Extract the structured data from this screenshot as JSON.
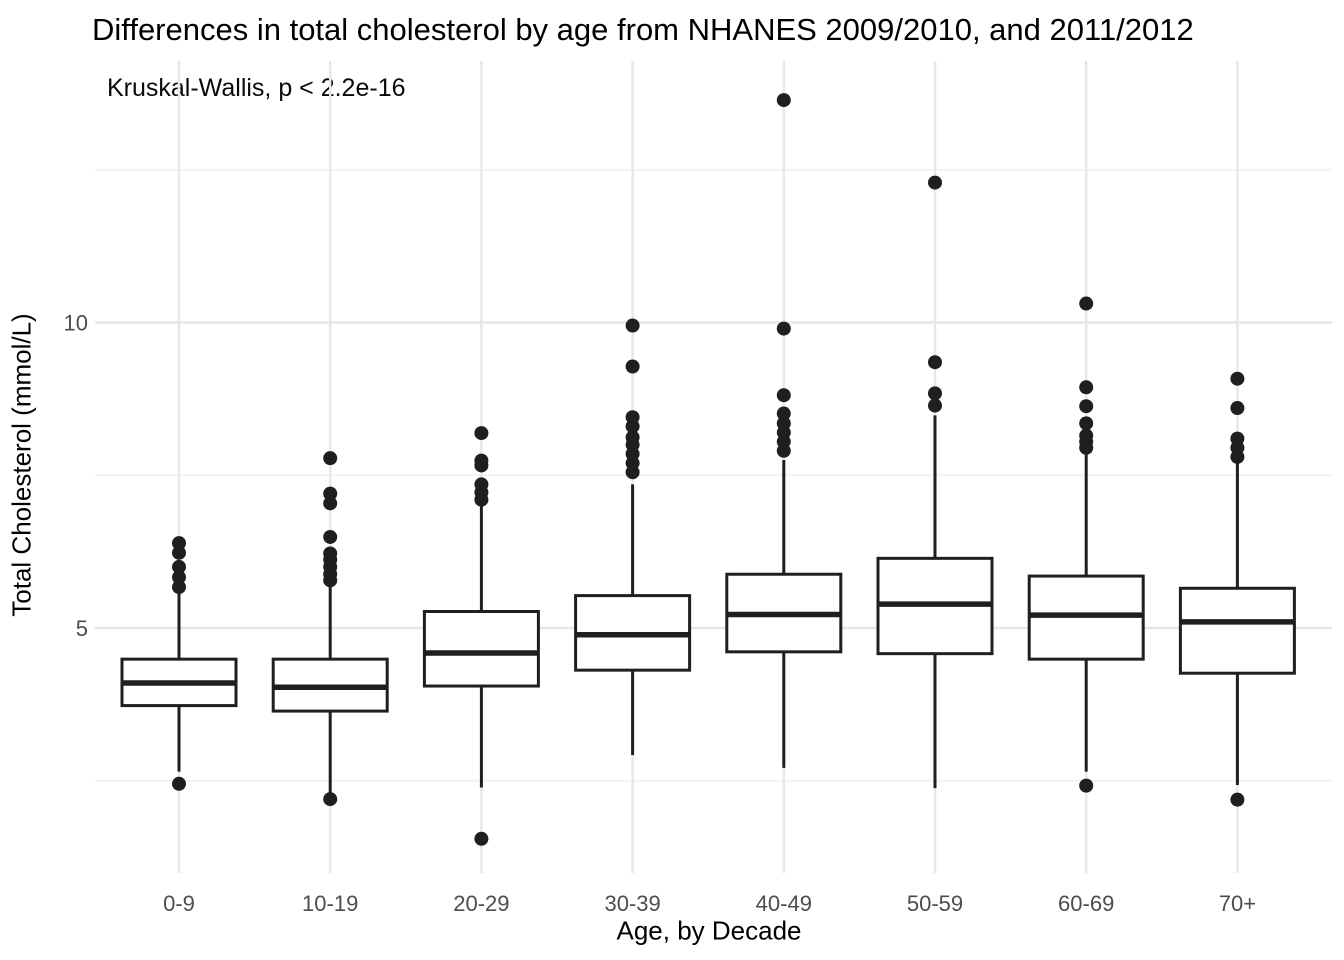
{
  "chart_data": {
    "type": "boxplot",
    "title": "Differences in total cholesterol by age from NHANES 2009/2010, and 2011/2012",
    "annotation": "Kruskal-Wallis, p < 2.2e-16",
    "xlabel": "Age, by Decade",
    "ylabel": "Total Cholesterol (mmol/L)",
    "ylim": [
      0.99,
      14.28
    ],
    "y_major_ticks": [
      5,
      10
    ],
    "y_minor_gridlines": [
      2.5,
      7.5,
      12.5
    ],
    "grid": true,
    "legend": false,
    "categories": [
      "0-9",
      "10-19",
      "20-29",
      "30-39",
      "40-49",
      "50-59",
      "60-69",
      "70+"
    ],
    "boxes": [
      {
        "category": "0-9",
        "whisker_low": 2.65,
        "q1": 3.73,
        "median": 4.1,
        "q3": 4.49,
        "whisker_high": 5.57,
        "outliers": [
          2.45,
          5.67,
          5.83,
          6.0,
          6.23,
          6.39
        ]
      },
      {
        "category": "10-19",
        "whisker_low": 2.27,
        "q1": 3.64,
        "median": 4.03,
        "q3": 4.49,
        "whisker_high": 5.7,
        "outliers": [
          2.2,
          5.78,
          5.88,
          6.0,
          6.12,
          6.22,
          6.49,
          7.04,
          7.2,
          7.78
        ]
      },
      {
        "category": "20-29",
        "whisker_low": 2.39,
        "q1": 4.05,
        "median": 4.59,
        "q3": 5.27,
        "whisker_high": 7.06,
        "outliers": [
          1.55,
          7.1,
          7.22,
          7.35,
          7.66,
          7.74,
          8.19
        ]
      },
      {
        "category": "30-39",
        "whisker_low": 2.92,
        "q1": 4.31,
        "median": 4.89,
        "q3": 5.53,
        "whisker_high": 7.35,
        "outliers": [
          7.55,
          7.7,
          7.85,
          8.0,
          8.12,
          8.3,
          8.45,
          9.28,
          9.95
        ]
      },
      {
        "category": "40-49",
        "whisker_low": 2.71,
        "q1": 4.61,
        "median": 5.22,
        "q3": 5.88,
        "whisker_high": 7.75,
        "outliers": [
          7.9,
          8.05,
          8.2,
          8.35,
          8.51,
          8.81,
          9.9,
          13.64
        ]
      },
      {
        "category": "50-59",
        "whisker_low": 2.38,
        "q1": 4.58,
        "median": 5.39,
        "q3": 6.14,
        "whisker_high": 8.48,
        "outliers": [
          8.64,
          8.84,
          9.35,
          12.29
        ]
      },
      {
        "category": "60-69",
        "whisker_low": 2.65,
        "q1": 4.49,
        "median": 5.21,
        "q3": 5.85,
        "whisker_high": 7.86,
        "outliers": [
          2.42,
          7.95,
          8.05,
          8.15,
          8.35,
          8.63,
          8.94,
          10.31
        ]
      },
      {
        "category": "70+",
        "whisker_low": 2.43,
        "q1": 4.26,
        "median": 5.1,
        "q3": 5.65,
        "whisker_high": 7.71,
        "outliers": [
          2.19,
          7.8,
          7.95,
          8.1,
          8.6,
          9.08
        ]
      }
    ],
    "style": {
      "box_color": "#1f1f1f",
      "box_fill": "#ffffff",
      "grid_major": "#e7e7e7",
      "grid_minor": "#f2f2f2",
      "axis_text_color": "#4d4d4d",
      "title_color": "#000000"
    }
  }
}
